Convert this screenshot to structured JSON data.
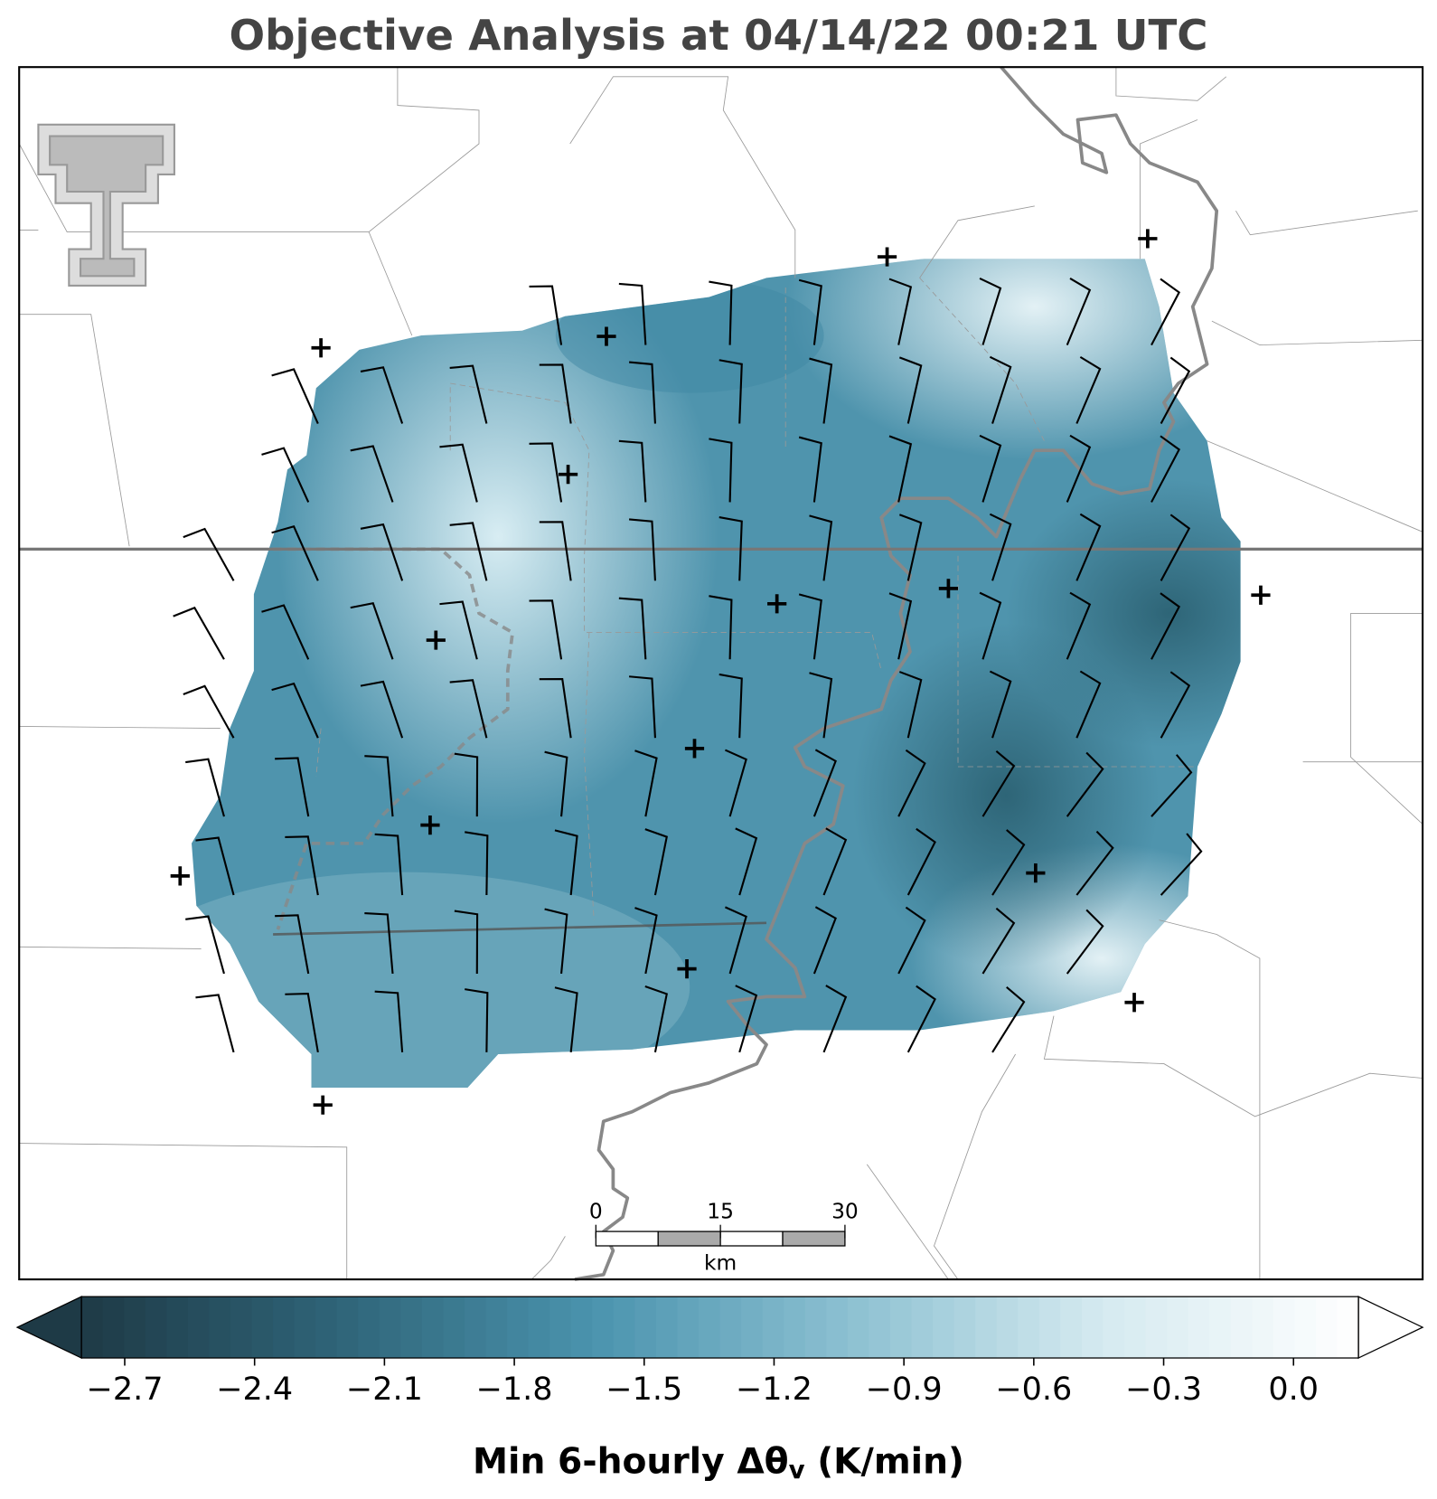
{
  "title": "Objective Analysis at 04/14/22 00:21 UTC",
  "colorbar": {
    "type": "colorbar",
    "label": "Min 6-hourly Δθ",
    "label_sub": "v",
    "label_suffix": " (K/min)",
    "clim": [
      -2.8,
      0.15
    ],
    "ticks": [
      {
        "value": -2.7,
        "label": "−2.7"
      },
      {
        "value": -2.4,
        "label": "−2.4"
      },
      {
        "value": -2.1,
        "label": "−2.1"
      },
      {
        "value": -1.8,
        "label": "−1.8"
      },
      {
        "value": -1.5,
        "label": "−1.5"
      },
      {
        "value": -1.2,
        "label": "−1.2"
      },
      {
        "value": -0.9,
        "label": "−0.9"
      },
      {
        "value": -0.6,
        "label": "−0.6"
      },
      {
        "value": -0.3,
        "label": "−0.3"
      },
      {
        "value": 0,
        "label": "0.0"
      }
    ],
    "colors": [
      "#1e3a46",
      "#2f6478",
      "#4a93ad",
      "#8cc0d1",
      "#d5eaf0",
      "#ffffff"
    ]
  },
  "scale_bar": {
    "xlim": [
      0,
      30
    ],
    "xticks": [
      0,
      15,
      30
    ],
    "unit": "km"
  }
}
